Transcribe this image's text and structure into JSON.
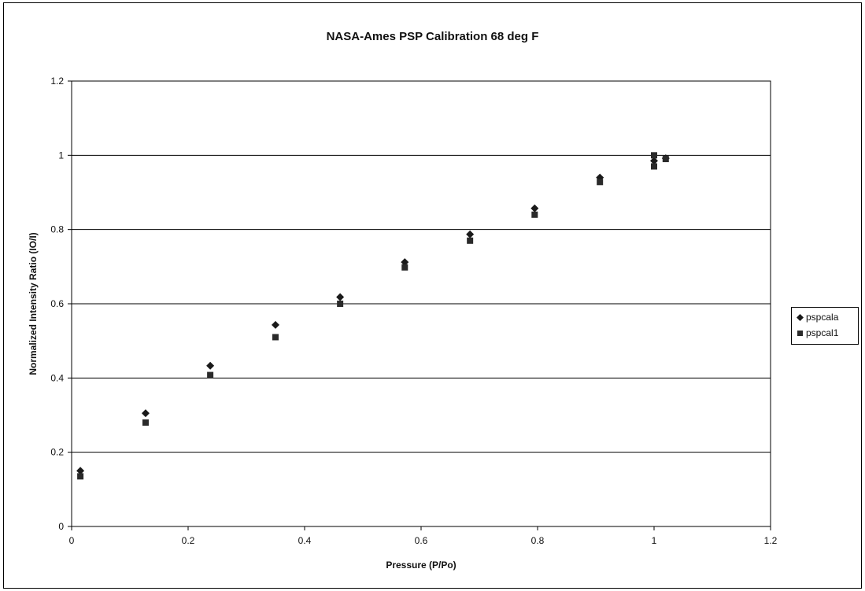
{
  "chart_data": {
    "type": "scatter",
    "title": "NASA-Ames PSP Calibration 68 deg F",
    "xlabel": "Pressure (P/Po)",
    "ylabel": "Normalized Intensity Ratio (IO/I)",
    "xlim": [
      0,
      1.2
    ],
    "ylim": [
      0,
      1.2
    ],
    "xticks": [
      "0",
      "0.2",
      "0.4",
      "0.6",
      "0.8",
      "1",
      "1.2"
    ],
    "yticks": [
      "0",
      "0.2",
      "0.4",
      "0.6",
      "0.8",
      "1",
      "1.2"
    ],
    "grid": "horizontal",
    "legend_position": "right",
    "series": [
      {
        "name": "pspcala",
        "marker": "diamond",
        "color": "#1a1a1a",
        "points": [
          [
            0.015,
            0.15
          ],
          [
            0.127,
            0.305
          ],
          [
            0.238,
            0.433
          ],
          [
            0.35,
            0.543
          ],
          [
            0.461,
            0.618
          ],
          [
            0.572,
            0.712
          ],
          [
            0.684,
            0.787
          ],
          [
            0.795,
            0.857
          ],
          [
            0.907,
            0.94
          ],
          [
            1.0,
            0.985
          ],
          [
            1.02,
            0.992
          ]
        ]
      },
      {
        "name": "pspcal1",
        "marker": "square",
        "color": "#2a2a2a",
        "points": [
          [
            0.015,
            0.135
          ],
          [
            0.127,
            0.28
          ],
          [
            0.238,
            0.408
          ],
          [
            0.35,
            0.51
          ],
          [
            0.461,
            0.6
          ],
          [
            0.572,
            0.698
          ],
          [
            0.684,
            0.77
          ],
          [
            0.795,
            0.84
          ],
          [
            0.907,
            0.928
          ],
          [
            1.0,
            0.97
          ],
          [
            1.0,
            1.0
          ],
          [
            1.02,
            0.99
          ]
        ]
      }
    ]
  }
}
